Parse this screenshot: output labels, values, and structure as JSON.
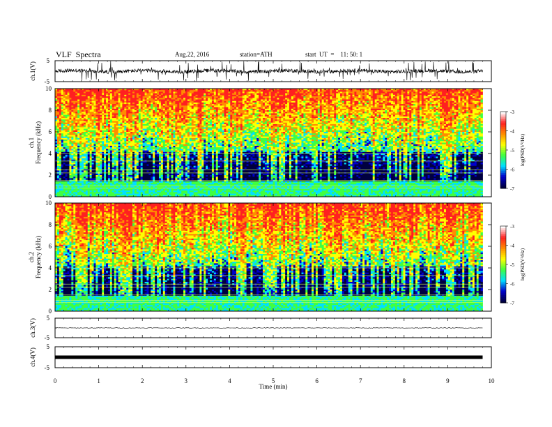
{
  "header": {
    "title": "VLF  Spectra",
    "date": "Aug.22, 2016",
    "station": "station=ATH",
    "start": "start  UT  =    11: 50: 1"
  },
  "chart_data": {
    "type": "spectrogram",
    "x_label": "Time  (min)",
    "x_ticks": [
      "0",
      "1",
      "2",
      "3",
      "4",
      "5",
      "6",
      "7",
      "8",
      "9",
      "10"
    ],
    "x_range": [
      0,
      10
    ],
    "data_end_min": 9.8,
    "panels": [
      {
        "kind": "waveform",
        "ylabel": "ch.1(V)",
        "yticks": [
          "5",
          "-5"
        ],
        "ylim": [
          -5,
          5
        ],
        "amplitude_note": "signal mostly within about ±1.5 V with frequent spikes to ±5"
      },
      {
        "kind": "spectrogram",
        "ylabel_lines": [
          "ch.1",
          "Frequency  (kHz)"
        ],
        "yticks": [
          "0",
          "2",
          "4",
          "6",
          "8",
          "10"
        ],
        "ylim": [
          0,
          10
        ],
        "colorbar": {
          "label": "log(PSD(V²/Hz)",
          "ticks": [
            "-3",
            "-4",
            "-5",
            "-6",
            "-7"
          ],
          "range": [
            -7,
            -3
          ]
        }
      },
      {
        "kind": "spectrogram",
        "ylabel_lines": [
          "ch.2",
          "Frequency  (kHz)"
        ],
        "yticks": [
          "0",
          "2",
          "4",
          "6",
          "8",
          "10"
        ],
        "ylim": [
          0,
          10
        ],
        "colorbar": {
          "label": "log(PSD(V²/Hz)",
          "ticks": [
            "-3",
            "-4",
            "-5",
            "-6",
            "-7"
          ],
          "range": [
            -7,
            -3
          ]
        }
      },
      {
        "kind": "waveform",
        "ylabel": "ch.3(V)",
        "yticks": [
          "5",
          "-5"
        ],
        "ylim": [
          -5,
          5
        ],
        "amplitude_note": "flat near 0 V"
      },
      {
        "kind": "waveform",
        "ylabel": "ch.4(V)",
        "yticks": [
          "5",
          "-5"
        ],
        "ylim": [
          -5,
          5
        ],
        "amplitude_note": "thick flat line near 0 V"
      }
    ],
    "colormap": [
      "#ffffff",
      "#ff2020",
      "#ff8c00",
      "#ffff00",
      "#40ff40",
      "#00e0ff",
      "#0000cc",
      "#000040"
    ]
  }
}
